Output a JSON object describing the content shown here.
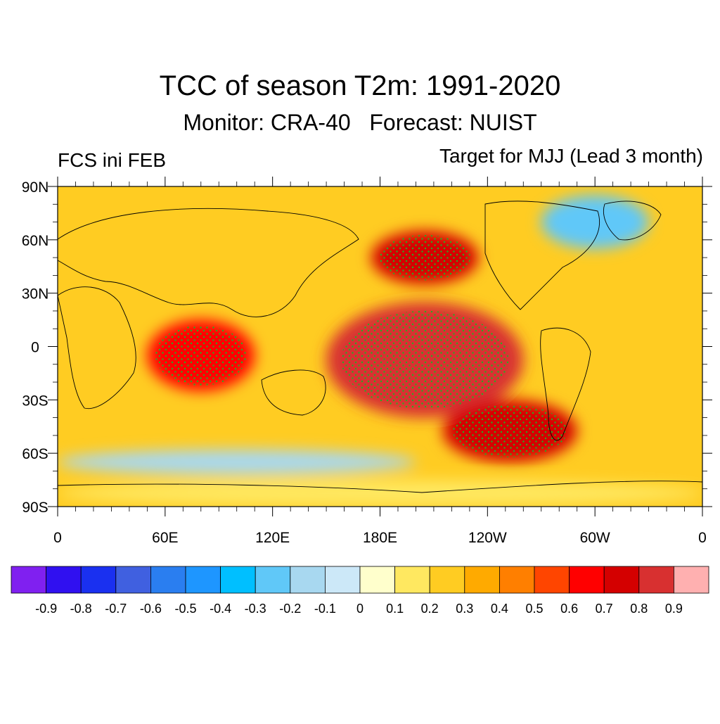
{
  "header": {
    "title": "TCC of season T2m: 1991-2020",
    "subtitle": "Monitor: CRA-40   Forecast: NUIST",
    "left_label": "FCS ini FEB",
    "right_label": "Target for MJJ (Lead 3 month)"
  },
  "map": {
    "projection": "cylindrical-equidistant",
    "lon_range": [
      0,
      360
    ],
    "lat_range": [
      -90,
      90
    ],
    "lat_ticks": [
      "90N",
      "60N",
      "30N",
      "0",
      "30S",
      "60S",
      "90S"
    ],
    "lon_ticks": [
      "0",
      "60E",
      "120E",
      "180E",
      "120W",
      "60W",
      "0"
    ],
    "dots_legend": "significant grid points (stippled)",
    "regions": [
      {
        "name": "tropical-pacific",
        "lon": [
          150,
          260
        ],
        "lat": [
          -40,
          25
        ],
        "value": 0.8
      },
      {
        "name": "north-pacific",
        "lon": [
          175,
          235
        ],
        "lat": [
          35,
          65
        ],
        "value": 0.75
      },
      {
        "name": "indian-ocean",
        "lon": [
          50,
          110
        ],
        "lat": [
          -25,
          15
        ],
        "value": 0.65
      },
      {
        "name": "south-pacific",
        "lon": [
          215,
          290
        ],
        "lat": [
          -65,
          -30
        ],
        "value": 0.7
      },
      {
        "name": "greenland-arctic",
        "lon": [
          270,
          330
        ],
        "lat": [
          55,
          85
        ],
        "value": -0.3
      },
      {
        "name": "southern-ocean-band",
        "lon": [
          0,
          200
        ],
        "lat": [
          -72,
          -58
        ],
        "value": -0.2
      },
      {
        "name": "antarctica",
        "lon": [
          0,
          360
        ],
        "lat": [
          -90,
          -75
        ],
        "value": 0.1
      }
    ]
  },
  "colorbar": {
    "colors": [
      "#8020f0",
      "#3010f0",
      "#1a30f0",
      "#4060e0",
      "#2a7ef0",
      "#1e96ff",
      "#00bfff",
      "#60c8f8",
      "#a8d8f0",
      "#cce8f8",
      "#ffffcc",
      "#ffe860",
      "#ffcc22",
      "#ffaa00",
      "#ff7f00",
      "#ff4500",
      "#ff0000",
      "#d40000",
      "#d83030",
      "#ffb0b0"
    ],
    "labels": [
      "-0.9",
      "-0.8",
      "-0.7",
      "-0.6",
      "-0.5",
      "-0.4",
      "-0.3",
      "-0.2",
      "-0.1",
      "0",
      "0.1",
      "0.2",
      "0.3",
      "0.4",
      "0.5",
      "0.6",
      "0.7",
      "0.8",
      "0.9"
    ]
  }
}
